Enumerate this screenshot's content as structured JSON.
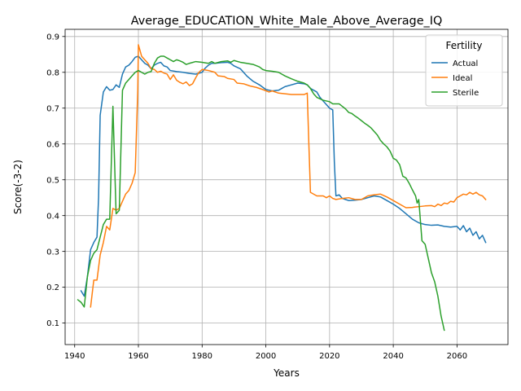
{
  "chart_data": {
    "type": "line",
    "title": "Average_EDUCATION_White_Male_Above_Average_IQ",
    "xlabel": "Years",
    "ylabel": "Score(-3-2)",
    "xlim": [
      1937,
      2076
    ],
    "ylim": [
      0.04,
      0.92
    ],
    "xticks": [
      1940,
      1960,
      1980,
      2000,
      2020,
      2040,
      2060
    ],
    "yticks": [
      0.1,
      0.2,
      0.3,
      0.4,
      0.5,
      0.6,
      0.7,
      0.8,
      0.9
    ],
    "grid": true,
    "legend": {
      "title": "Fertility",
      "placement": "top-right"
    },
    "series": [
      {
        "name": "Actual",
        "color": "#1f77b4",
        "points": [
          [
            1942,
            0.19
          ],
          [
            1943,
            0.175
          ],
          [
            1944,
            0.23
          ],
          [
            1945,
            0.305
          ],
          [
            1946,
            0.325
          ],
          [
            1947,
            0.34
          ],
          [
            1947.5,
            0.45
          ],
          [
            1948,
            0.68
          ],
          [
            1949,
            0.745
          ],
          [
            1950,
            0.76
          ],
          [
            1951,
            0.75
          ],
          [
            1952,
            0.752
          ],
          [
            1953,
            0.765
          ],
          [
            1954,
            0.758
          ],
          [
            1955,
            0.795
          ],
          [
            1956,
            0.815
          ],
          [
            1957,
            0.82
          ],
          [
            1958,
            0.83
          ],
          [
            1959,
            0.842
          ],
          [
            1960,
            0.845
          ],
          [
            1961,
            0.835
          ],
          [
            1962,
            0.825
          ],
          [
            1963,
            0.82
          ],
          [
            1964,
            0.81
          ],
          [
            1965,
            0.82
          ],
          [
            1966,
            0.825
          ],
          [
            1967,
            0.828
          ],
          [
            1968,
            0.818
          ],
          [
            1969,
            0.815
          ],
          [
            1970,
            0.805
          ],
          [
            1972,
            0.802
          ],
          [
            1974,
            0.8
          ],
          [
            1976,
            0.797
          ],
          [
            1978,
            0.795
          ],
          [
            1980,
            0.8
          ],
          [
            1981,
            0.812
          ],
          [
            1982,
            0.82
          ],
          [
            1983,
            0.825
          ],
          [
            1984,
            0.825
          ],
          [
            1986,
            0.827
          ],
          [
            1988,
            0.828
          ],
          [
            1989,
            0.825
          ],
          [
            1990,
            0.818
          ],
          [
            1992,
            0.81
          ],
          [
            1993,
            0.8
          ],
          [
            1994,
            0.79
          ],
          [
            1996,
            0.775
          ],
          [
            1998,
            0.765
          ],
          [
            2000,
            0.752
          ],
          [
            2002,
            0.748
          ],
          [
            2004,
            0.75
          ],
          [
            2005,
            0.755
          ],
          [
            2006,
            0.76
          ],
          [
            2008,
            0.765
          ],
          [
            2010,
            0.77
          ],
          [
            2012,
            0.768
          ],
          [
            2013,
            0.765
          ],
          [
            2014,
            0.755
          ],
          [
            2016,
            0.745
          ],
          [
            2017,
            0.73
          ],
          [
            2018,
            0.72
          ],
          [
            2019,
            0.71
          ],
          [
            2020,
            0.7
          ],
          [
            2021,
            0.695
          ],
          [
            2021.5,
            0.55
          ],
          [
            2022,
            0.455
          ],
          [
            2023,
            0.458
          ],
          [
            2024,
            0.448
          ],
          [
            2025,
            0.445
          ],
          [
            2026,
            0.442
          ],
          [
            2028,
            0.443
          ],
          [
            2030,
            0.445
          ],
          [
            2032,
            0.45
          ],
          [
            2034,
            0.455
          ],
          [
            2036,
            0.452
          ],
          [
            2038,
            0.442
          ],
          [
            2040,
            0.432
          ],
          [
            2042,
            0.42
          ],
          [
            2044,
            0.405
          ],
          [
            2046,
            0.39
          ],
          [
            2048,
            0.38
          ],
          [
            2050,
            0.375
          ],
          [
            2052,
            0.373
          ],
          [
            2054,
            0.374
          ],
          [
            2056,
            0.37
          ],
          [
            2058,
            0.368
          ],
          [
            2060,
            0.37
          ],
          [
            2061,
            0.36
          ],
          [
            2062,
            0.372
          ],
          [
            2063,
            0.355
          ],
          [
            2064,
            0.365
          ],
          [
            2065,
            0.345
          ],
          [
            2066,
            0.355
          ],
          [
            2067,
            0.335
          ],
          [
            2068,
            0.345
          ],
          [
            2069,
            0.325
          ]
        ]
      },
      {
        "name": "Ideal",
        "color": "#ff7f0e",
        "points": [
          [
            1945,
            0.145
          ],
          [
            1946,
            0.22
          ],
          [
            1947,
            0.22
          ],
          [
            1948,
            0.29
          ],
          [
            1949,
            0.325
          ],
          [
            1950,
            0.37
          ],
          [
            1951,
            0.36
          ],
          [
            1952,
            0.42
          ],
          [
            1953,
            0.415
          ],
          [
            1954,
            0.42
          ],
          [
            1955,
            0.44
          ],
          [
            1956,
            0.46
          ],
          [
            1957,
            0.47
          ],
          [
            1958,
            0.49
          ],
          [
            1959,
            0.52
          ],
          [
            1959.8,
            0.75
          ],
          [
            1960,
            0.877
          ],
          [
            1961,
            0.845
          ],
          [
            1962,
            0.835
          ],
          [
            1963,
            0.825
          ],
          [
            1964,
            0.81
          ],
          [
            1965,
            0.808
          ],
          [
            1966,
            0.8
          ],
          [
            1967,
            0.803
          ],
          [
            1968,
            0.798
          ],
          [
            1969,
            0.795
          ],
          [
            1970,
            0.78
          ],
          [
            1971,
            0.793
          ],
          [
            1972,
            0.778
          ],
          [
            1973,
            0.772
          ],
          [
            1974,
            0.768
          ],
          [
            1975,
            0.773
          ],
          [
            1976,
            0.763
          ],
          [
            1977,
            0.768
          ],
          [
            1978,
            0.785
          ],
          [
            1979,
            0.8
          ],
          [
            1980,
            0.808
          ],
          [
            1982,
            0.805
          ],
          [
            1984,
            0.8
          ],
          [
            1985,
            0.79
          ],
          [
            1987,
            0.788
          ],
          [
            1988,
            0.783
          ],
          [
            1990,
            0.78
          ],
          [
            1991,
            0.77
          ],
          [
            1993,
            0.768
          ],
          [
            1995,
            0.762
          ],
          [
            1997,
            0.758
          ],
          [
            1999,
            0.752
          ],
          [
            2001,
            0.745
          ],
          [
            2002,
            0.748
          ],
          [
            2004,
            0.742
          ],
          [
            2006,
            0.74
          ],
          [
            2008,
            0.738
          ],
          [
            2010,
            0.738
          ],
          [
            2012,
            0.738
          ],
          [
            2013,
            0.742
          ],
          [
            2013.5,
            0.6
          ],
          [
            2014,
            0.465
          ],
          [
            2016,
            0.455
          ],
          [
            2018,
            0.455
          ],
          [
            2019,
            0.45
          ],
          [
            2020,
            0.455
          ],
          [
            2021,
            0.448
          ],
          [
            2022,
            0.445
          ],
          [
            2024,
            0.448
          ],
          [
            2026,
            0.45
          ],
          [
            2028,
            0.445
          ],
          [
            2030,
            0.445
          ],
          [
            2032,
            0.455
          ],
          [
            2034,
            0.458
          ],
          [
            2036,
            0.46
          ],
          [
            2038,
            0.452
          ],
          [
            2040,
            0.442
          ],
          [
            2042,
            0.432
          ],
          [
            2044,
            0.422
          ],
          [
            2046,
            0.423
          ],
          [
            2048,
            0.425
          ],
          [
            2050,
            0.427
          ],
          [
            2052,
            0.428
          ],
          [
            2053,
            0.425
          ],
          [
            2054,
            0.432
          ],
          [
            2055,
            0.428
          ],
          [
            2056,
            0.435
          ],
          [
            2057,
            0.433
          ],
          [
            2058,
            0.44
          ],
          [
            2059,
            0.438
          ],
          [
            2060,
            0.45
          ],
          [
            2061,
            0.455
          ],
          [
            2062,
            0.46
          ],
          [
            2063,
            0.458
          ],
          [
            2064,
            0.465
          ],
          [
            2065,
            0.46
          ],
          [
            2066,
            0.465
          ],
          [
            2067,
            0.458
          ],
          [
            2068,
            0.455
          ],
          [
            2069,
            0.445
          ]
        ]
      },
      {
        "name": "Sterile",
        "color": "#2ca02c",
        "points": [
          [
            1941,
            0.165
          ],
          [
            1942,
            0.158
          ],
          [
            1943,
            0.145
          ],
          [
            1944,
            0.23
          ],
          [
            1945,
            0.275
          ],
          [
            1946,
            0.295
          ],
          [
            1947,
            0.305
          ],
          [
            1948,
            0.34
          ],
          [
            1949,
            0.375
          ],
          [
            1950,
            0.39
          ],
          [
            1951,
            0.39
          ],
          [
            1952,
            0.705
          ],
          [
            1953,
            0.405
          ],
          [
            1954,
            0.415
          ],
          [
            1955,
            0.75
          ],
          [
            1956,
            0.77
          ],
          [
            1957,
            0.78
          ],
          [
            1958,
            0.79
          ],
          [
            1959,
            0.8
          ],
          [
            1960,
            0.805
          ],
          [
            1961,
            0.8
          ],
          [
            1962,
            0.795
          ],
          [
            1963,
            0.8
          ],
          [
            1964,
            0.802
          ],
          [
            1965,
            0.825
          ],
          [
            1966,
            0.84
          ],
          [
            1967,
            0.845
          ],
          [
            1968,
            0.845
          ],
          [
            1969,
            0.84
          ],
          [
            1970,
            0.835
          ],
          [
            1971,
            0.83
          ],
          [
            1972,
            0.835
          ],
          [
            1973,
            0.832
          ],
          [
            1974,
            0.828
          ],
          [
            1975,
            0.822
          ],
          [
            1976,
            0.825
          ],
          [
            1978,
            0.83
          ],
          [
            1980,
            0.828
          ],
          [
            1982,
            0.825
          ],
          [
            1983,
            0.83
          ],
          [
            1984,
            0.825
          ],
          [
            1986,
            0.83
          ],
          [
            1988,
            0.832
          ],
          [
            1989,
            0.828
          ],
          [
            1990,
            0.833
          ],
          [
            1992,
            0.828
          ],
          [
            1994,
            0.825
          ],
          [
            1996,
            0.822
          ],
          [
            1998,
            0.815
          ],
          [
            1999,
            0.808
          ],
          [
            2000,
            0.805
          ],
          [
            2002,
            0.803
          ],
          [
            2004,
            0.8
          ],
          [
            2005,
            0.795
          ],
          [
            2006,
            0.79
          ],
          [
            2008,
            0.782
          ],
          [
            2010,
            0.775
          ],
          [
            2012,
            0.77
          ],
          [
            2013,
            0.765
          ],
          [
            2014,
            0.755
          ],
          [
            2015,
            0.74
          ],
          [
            2016,
            0.73
          ],
          [
            2018,
            0.722
          ],
          [
            2020,
            0.718
          ],
          [
            2021,
            0.712
          ],
          [
            2022,
            0.712
          ],
          [
            2023,
            0.712
          ],
          [
            2024,
            0.705
          ],
          [
            2025,
            0.698
          ],
          [
            2026,
            0.688
          ],
          [
            2027,
            0.685
          ],
          [
            2028,
            0.678
          ],
          [
            2029,
            0.672
          ],
          [
            2030,
            0.665
          ],
          [
            2031,
            0.658
          ],
          [
            2032,
            0.652
          ],
          [
            2033,
            0.645
          ],
          [
            2034,
            0.635
          ],
          [
            2035,
            0.625
          ],
          [
            2036,
            0.61
          ],
          [
            2037,
            0.6
          ],
          [
            2038,
            0.592
          ],
          [
            2039,
            0.58
          ],
          [
            2040,
            0.56
          ],
          [
            2041,
            0.555
          ],
          [
            2042,
            0.542
          ],
          [
            2043,
            0.51
          ],
          [
            2044,
            0.505
          ],
          [
            2045,
            0.49
          ],
          [
            2046,
            0.472
          ],
          [
            2047,
            0.455
          ],
          [
            2047.5,
            0.435
          ],
          [
            2048,
            0.445
          ],
          [
            2049,
            0.33
          ],
          [
            2050,
            0.32
          ],
          [
            2051,
            0.28
          ],
          [
            2052,
            0.24
          ],
          [
            2053,
            0.215
          ],
          [
            2054,
            0.175
          ],
          [
            2055,
            0.12
          ],
          [
            2056,
            0.08
          ]
        ]
      }
    ]
  }
}
